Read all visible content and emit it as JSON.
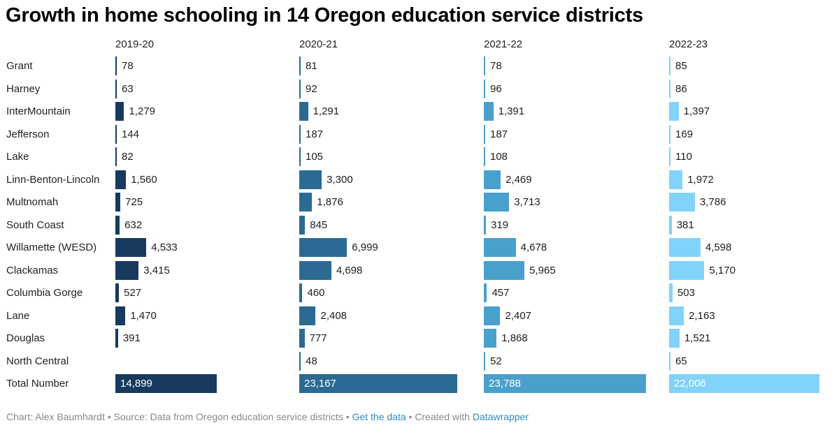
{
  "title": "Growth in home schooling in 14 Oregon education service districts",
  "chart_data": {
    "type": "bar",
    "orientation": "horizontal",
    "layout": "small-multiples",
    "title": "Growth in home schooling in 14 Oregon education service districts",
    "categories": [
      "Grant",
      "Harney",
      "InterMountain",
      "Jefferson",
      "Lake",
      "Linn-Benton-Lincoln",
      "Multnomah",
      "South Coast",
      "Willamette (WESD)",
      "Clackamas",
      "Columbia Gorge",
      "Lane",
      "Douglas",
      "North Central",
      "Total Number"
    ],
    "series": [
      {
        "name": "2019-20",
        "color": "#173a5e",
        "values": [
          78,
          63,
          1279,
          144,
          82,
          1560,
          725,
          632,
          4533,
          3415,
          527,
          1470,
          391,
          null,
          14899
        ],
        "labels": [
          "78",
          "63",
          "1,279",
          "144",
          "82",
          "1,560",
          "725",
          "632",
          "4,533",
          "3,415",
          "527",
          "1,470",
          "391",
          "",
          "14,899"
        ]
      },
      {
        "name": "2020-21",
        "color": "#2b6a92",
        "values": [
          81,
          92,
          1291,
          187,
          105,
          3300,
          1876,
          845,
          6999,
          4698,
          460,
          2408,
          777,
          48,
          23167
        ],
        "labels": [
          "81",
          "92",
          "1,291",
          "187",
          "105",
          "3,300",
          "1,876",
          "845",
          "6,999",
          "4,698",
          "460",
          "2,408",
          "777",
          "48",
          "23,167"
        ]
      },
      {
        "name": "2021-22",
        "color": "#4aa0cc",
        "values": [
          78,
          96,
          1391,
          187,
          108,
          2469,
          3713,
          319,
          4678,
          5965,
          457,
          2407,
          1868,
          52,
          23788
        ],
        "labels": [
          "78",
          "96",
          "1,391",
          "187",
          "108",
          "2,469",
          "3,713",
          "319",
          "4,678",
          "5,965",
          "457",
          "2,407",
          "1,868",
          "52",
          "23,788"
        ]
      },
      {
        "name": "2022-23",
        "color": "#81d3fa",
        "values": [
          85,
          86,
          1397,
          169,
          110,
          1972,
          3786,
          381,
          4598,
          5170,
          503,
          2163,
          1521,
          65,
          22006
        ],
        "labels": [
          "85",
          "86",
          "1,397",
          "169",
          "110",
          "1,972",
          "3,786",
          "381",
          "4,598",
          "5,170",
          "503",
          "2,163",
          "1,521",
          "65",
          "22,006"
        ]
      }
    ],
    "xlabel": "",
    "ylabel": "",
    "grid": false,
    "legend": "none"
  },
  "footer": {
    "credit": "Chart: Alex Baumhardt • Source: Data from Oregon education service districts • ",
    "get_data": "Get the data",
    "created": " • Created with ",
    "datawrapper": "Datawrapper"
  }
}
